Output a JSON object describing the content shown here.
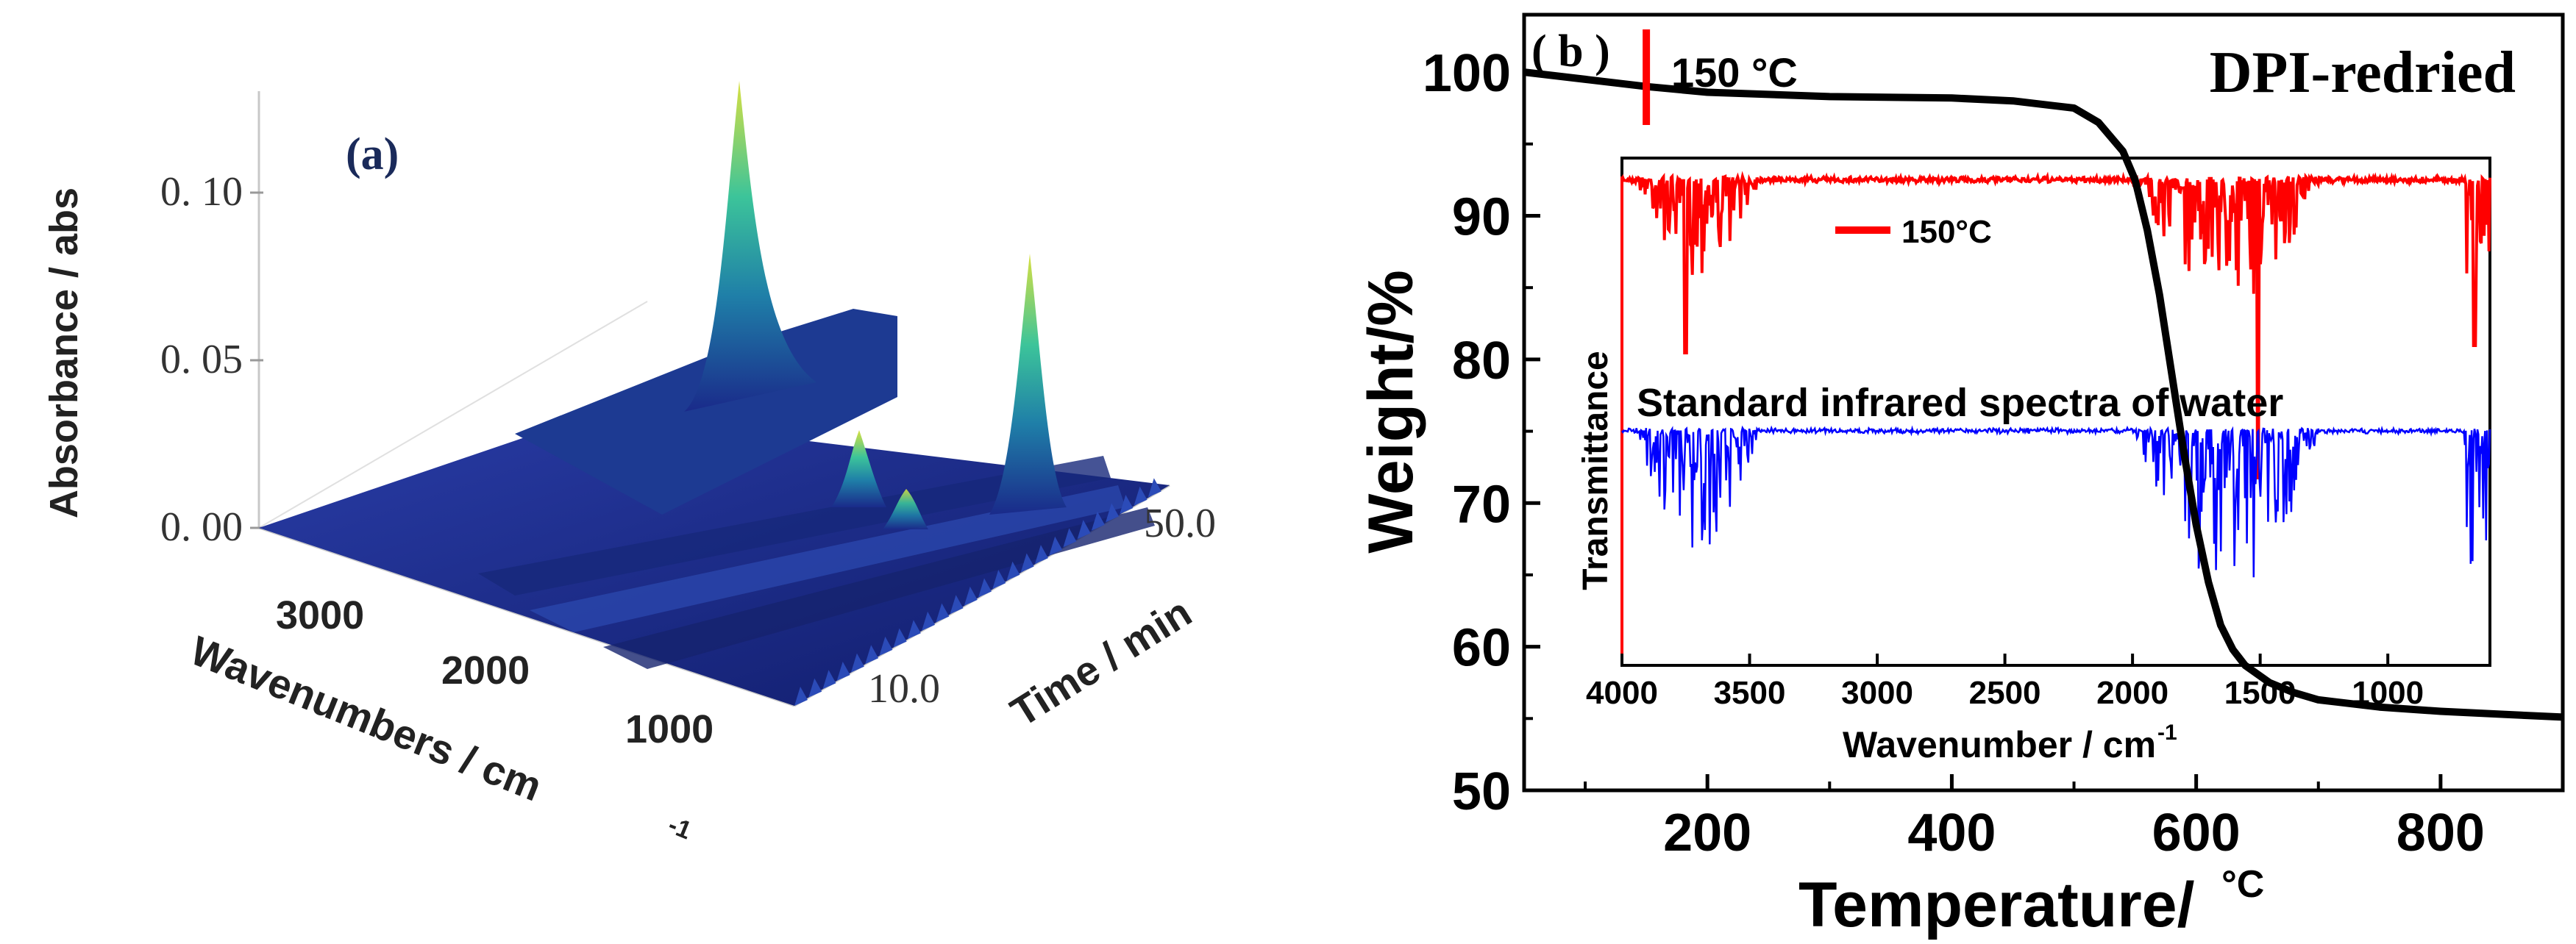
{
  "chart_data": [
    {
      "panel": "a",
      "type": "surface3d",
      "label": "(a)",
      "zlabel": "Absorbance / abs",
      "z_ticks": [
        "0. 00",
        "0. 05",
        "0. 10"
      ],
      "xlabel": "Wavenumbers / cm",
      "xlabel_sup": "-1",
      "x_ticks": [
        "3000",
        "2000",
        "1000"
      ],
      "ylabel": "Time / min",
      "y_ticks": [
        "10.0",
        "50.0"
      ],
      "x_range": [
        4000,
        500
      ],
      "y_range": [
        0,
        60
      ],
      "z_range": [
        0,
        0.13
      ],
      "peaks": [
        {
          "wavenumber": 2350,
          "time_min": 30,
          "absorbance": 0.125
        },
        {
          "wavenumber": 670,
          "time_min": 30,
          "absorbance": 0.09
        },
        {
          "wavenumber": 1750,
          "time_min": 30,
          "absorbance": 0.025
        },
        {
          "wavenumber": 1500,
          "time_min": 30,
          "absorbance": 0.012
        }
      ]
    },
    {
      "panel": "b",
      "type": "line",
      "label": "( b )",
      "title": "DPI-redried",
      "xlabel": "Temperature/",
      "xlabel_unit": "°C",
      "ylabel": "Weight/%",
      "xlim": [
        50,
        900
      ],
      "ylim": [
        50,
        104
      ],
      "x_ticks": [
        200,
        400,
        600,
        800
      ],
      "y_ticks": [
        50,
        60,
        70,
        80,
        90,
        100
      ],
      "marker": {
        "x": 150,
        "label": "150 °C"
      },
      "series": [
        {
          "name": "Weight",
          "color": "#000000",
          "x": [
            50,
            100,
            150,
            200,
            300,
            400,
            450,
            500,
            520,
            540,
            550,
            560,
            570,
            580,
            590,
            600,
            610,
            620,
            630,
            640,
            660,
            680,
            700,
            750,
            800,
            850,
            900
          ],
          "y": [
            100,
            99.5,
            99.0,
            98.6,
            98.3,
            98.2,
            98.0,
            97.5,
            96.5,
            94.5,
            92.5,
            89.0,
            84.5,
            79.0,
            73.5,
            68.5,
            64.5,
            61.5,
            59.8,
            58.7,
            57.5,
            56.8,
            56.3,
            55.8,
            55.5,
            55.3,
            55.1
          ]
        }
      ],
      "inset": {
        "xlabel": "Wavenumber / cm",
        "xlabel_sup": "-1",
        "ylabel": "Transmittance",
        "x_ticks": [
          4000,
          3500,
          3000,
          2500,
          2000,
          1500,
          1000
        ],
        "xlim": [
          4000,
          600
        ],
        "series": [
          {
            "name": "150°C",
            "legend": "150°C",
            "color": "#ff0000"
          },
          {
            "name": "Standard infrared spectra of water",
            "color": "#0000ff"
          }
        ]
      }
    }
  ]
}
